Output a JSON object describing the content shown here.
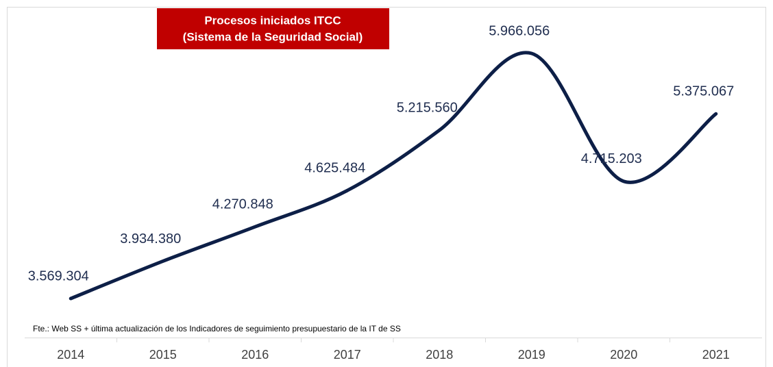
{
  "chart_data": {
    "type": "line",
    "title": [
      "Procesos iniciados ITCC",
      "(Sistema de la Seguridad Social)"
    ],
    "source": "Fte.: Web SS + última actualización de los Indicadores de seguimiento presupuestario de la IT de SS",
    "categories": [
      "2014",
      "2015",
      "2016",
      "2017",
      "2018",
      "2019",
      "2020",
      "2021"
    ],
    "series": [
      {
        "name": "Procesos iniciados ITCC",
        "color": "#0d1f47",
        "values": [
          3569304,
          3934380,
          4270848,
          4625484,
          5215560,
          5966056,
          4715203,
          5375067
        ],
        "value_labels": [
          "3.569.304",
          "3.934.380",
          "4.270.848",
          "4.625.484",
          "5.215.560",
          "5.966.056",
          "4.715.203",
          "5.375.067"
        ]
      }
    ],
    "title_color": "#c00000"
  }
}
